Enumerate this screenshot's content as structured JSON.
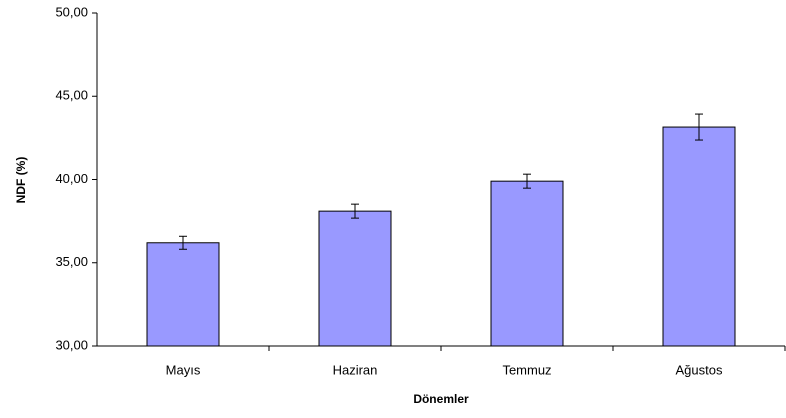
{
  "chart_data": {
    "type": "bar",
    "categories": [
      "Mayıs",
      "Haziran",
      "Temmuz",
      "Ağustos"
    ],
    "values": [
      36.2,
      38.1,
      39.9,
      43.15
    ],
    "errors": [
      0.39,
      0.42,
      0.42,
      0.78
    ],
    "color": "#9999ff",
    "xlabel": "Dönemler",
    "ylabel": "NDF (%)",
    "ylim": [
      30,
      50
    ],
    "yticks": [
      {
        "value": 30,
        "label": "30,00"
      },
      {
        "value": 35,
        "label": "35,00"
      },
      {
        "value": 40,
        "label": "40,00"
      },
      {
        "value": 45,
        "label": "45,00"
      },
      {
        "value": 50,
        "label": "50,00"
      }
    ],
    "grid": false
  }
}
